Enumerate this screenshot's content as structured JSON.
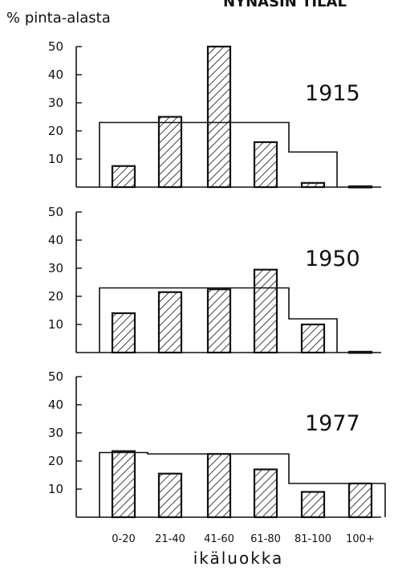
{
  "header": {
    "ylabel": "% pinta-alasta",
    "cropped_title": "NYNÄSIN  TILAL"
  },
  "chart_data": {
    "type": "bar",
    "categories": [
      "0-20",
      "21-40",
      "41-60",
      "61-80",
      "81-100",
      "100+"
    ],
    "xlabel": "ikäluokka",
    "ylabel": "% pinta-alasta",
    "ylim": [
      0,
      50
    ],
    "yticks": [
      10,
      20,
      30,
      40,
      50
    ],
    "colors": {
      "ink": "#111111",
      "paper": "#ffffff"
    },
    "panels": [
      {
        "title": "1915",
        "values": [
          7.5,
          25,
          50,
          16,
          1.5,
          0.3
        ],
        "reference": [
          23,
          23,
          23,
          23,
          12.5,
          0
        ]
      },
      {
        "title": "1950",
        "values": [
          14,
          21.5,
          22.5,
          29.5,
          10,
          0.3
        ],
        "reference": [
          23,
          23,
          23,
          23,
          12,
          0
        ]
      },
      {
        "title": "1977",
        "values": [
          23.5,
          15.5,
          22.5,
          17,
          9,
          12
        ],
        "reference": [
          23,
          22.5,
          22.5,
          22.5,
          12,
          12
        ]
      }
    ]
  }
}
